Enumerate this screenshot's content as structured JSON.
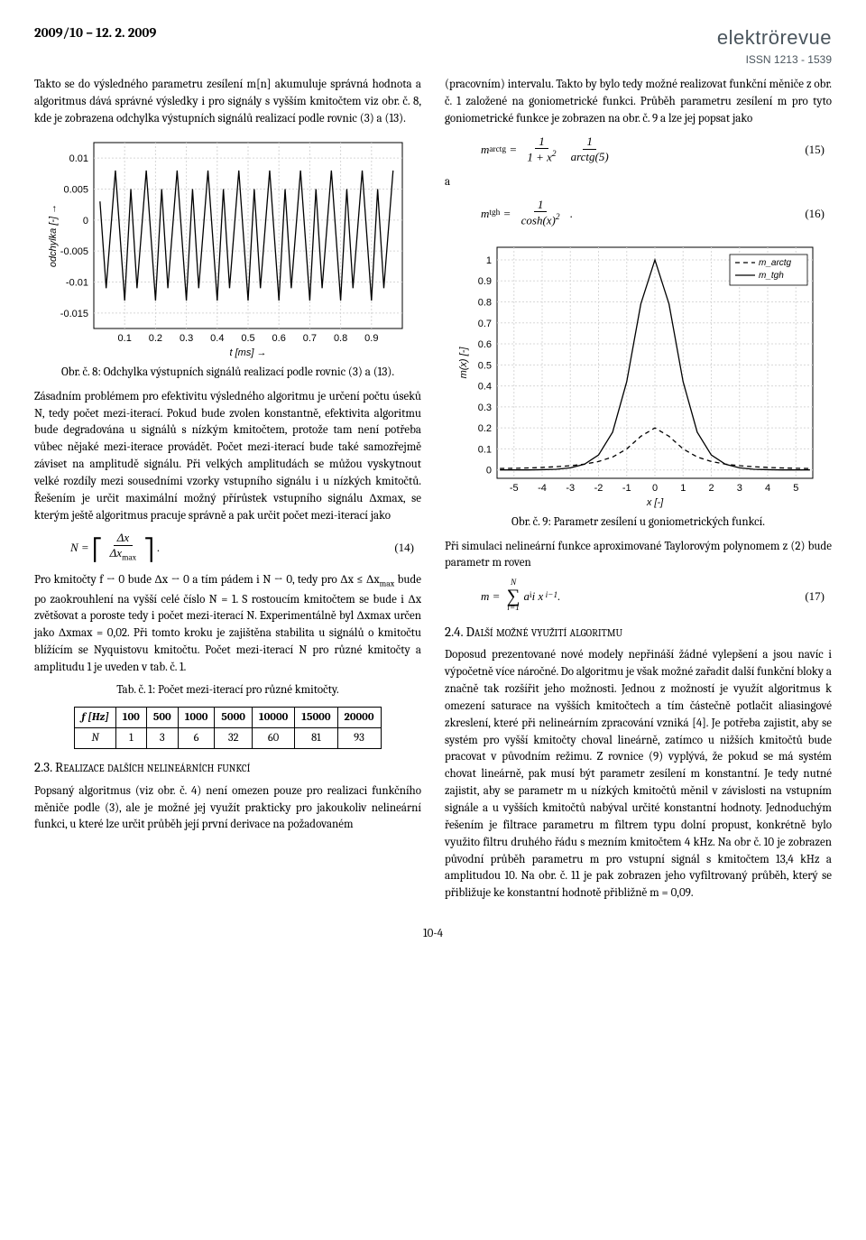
{
  "header": {
    "date": "2009/10 – 12. 2. 2009",
    "logo_main": "elektrörevue",
    "logo_issn": "ISSN 1213 - 1539"
  },
  "left": {
    "p1": "Takto se do výsledného parametru zesílení m[n] akumuluje správná hodnota a algoritmus dává správné výsledky i pro signály s vyšším kmitočtem viz obr. č. 8, kde je zobrazena odchylka výstupních signálů realizací podle rovnic (3) a (13).",
    "fig8_caption": "Obr. č. 8: Odchylka výstupních signálů realizací podle rovnic (3) a (13).",
    "p2": "Zásadním problémem pro efektivitu výsledného algoritmu je určení počtu úseků N, tedy počet mezi-iterací. Pokud bude zvolen konstantně, efektivita algoritmu bude degradována u signálů s nízkým kmitočtem, protože tam není potřeba vůbec nějaké mezi-iterace provádět. Počet mezi-iterací bude také samozřejmě záviset na amplitudě signálu. Při velkých amplitudách se můžou vyskytnout velké rozdíly mezi sousedními vzorky vstupního signálu i u nízkých kmitočtů. Řešením je určit maximální možný přírůstek vstupního signálu Δxmax, se kterým ještě algoritmus pracuje správně a pak určit počet mezi-iterací jako",
    "eq14_num": "(14)",
    "p3a": "Pro kmitočty  f → 0 bude  Δx → 0  a tím pádem i  N → 0, tedy pro  Δx ≤ Δx",
    "p3b": "  bude po zaokrouhlení na vyšší celé číslo N = 1. S rostoucím kmitočtem se bude i Δx zvětšovat a poroste tedy i počet mezi-iterací N. Experimentálně byl Δxmax určen jako Δxmax = 0,02. Při tomto kroku je zajištěna stabilita u signálů o kmitočtu blížícím se Nyquistovu kmitočtu. Počet mezi-iterací N pro různé kmitočty a amplitudu 1 je uveden v tab. č. 1.",
    "tab1_caption": "Tab. č. 1: Počet mezi-iterací pro různé kmitočty.",
    "sec23": "2.3. Realizace dalších nelineárních funkcí",
    "p4": "Popsaný algoritmus (viz obr. č. 4) není omezen pouze pro realizaci funkčního měniče podle (3), ale je možné jej využít prakticky pro jakoukoliv nelineární funkci, u které lze určit průběh její první derivace na požadovaném"
  },
  "right": {
    "p1": "(pracovním) intervalu.  Takto by bylo tedy možné realizovat funkční měniče z obr. č. 1 založené na goniometrické funkci. Průběh parametru zesílení m pro tyto goniometrické funkce je zobrazen na obr. č. 9 a lze jej popsat jako",
    "eq15_num": "(15)",
    "a_label": "a",
    "eq16_num": "(16)",
    "fig9_caption": "Obr. č. 9: Parametr zesílení u goniometrických funkcí.",
    "p2": "Při simulaci nelineární funkce aproximované Taylorovým polynomem z (2) bude parametr m roven",
    "eq17_num": "(17)",
    "sec24": "2.4. Další možné využití algoritmu",
    "p3": "Doposud prezentované nové modely nepřináší žádné vylepšení a jsou navíc i výpočetně více náročné. Do algoritmu je však možné zařadit další funkční bloky a značně tak rozšířit jeho možnosti. Jednou z možností je využít algoritmus k omezení saturace na vyšších kmitočtech a tím částečně potlačit aliasingové zkreslení, které při nelineárním zpracování vzniká [4]. Je potřeba zajistit, aby se systém pro vyšší kmitočty choval lineárně, zatímco u nižších kmitočtů bude pracovat v původním režimu. Z rovnice (9) vyplývá, že pokud se má systém chovat lineárně, pak musí být parametr zesílení m konstantní. Je tedy nutné zajistit, aby se parametr m u nízkých kmitočtů měnil v závislosti na vstupním signále a u vyšších kmitočtů nabýval určité konstantní hodnoty. Jednoduchým řešením je filtrace parametru m filtrem typu dolní propust, konkrétně bylo využito filtru druhého řádu s mezním kmitočtem 4 kHz. Na obr č. 10 je zobrazen původní průběh parametru m pro vstupní signál s kmitočtem 13,4 kHz a amplitudou 10. Na obr. č. 11 je pak zobrazen jeho vyfiltrovaný průběh, který se přibližuje ke konstantní hodnotě přibližně m = 0,09."
  },
  "table1": {
    "columns": [
      "f [Hz]",
      "100",
      "500",
      "1000",
      "5000",
      "10000",
      "15000",
      "20000"
    ],
    "rows": [
      [
        "N",
        "1",
        "3",
        "6",
        "32",
        "60",
        "81",
        "93"
      ]
    ]
  },
  "fig8": {
    "xlabel": "t [ms] →",
    "ylabel": "odchylka [-] →",
    "xticks": [
      0.1,
      0.2,
      0.3,
      0.4,
      0.5,
      0.6,
      0.7,
      0.8,
      0.9
    ],
    "yticks": [
      -0.015,
      -0.01,
      -0.005,
      0,
      0.005,
      0.01
    ],
    "xlim": [
      0.0,
      1.0
    ],
    "ylim": [
      -0.0175,
      0.0125
    ],
    "grid_color": "#d6d6d6",
    "line_color": "#000000",
    "bg": "#ffffff",
    "t": [
      0.02,
      0.04,
      0.07,
      0.1,
      0.12,
      0.14,
      0.17,
      0.2,
      0.22,
      0.24,
      0.27,
      0.3,
      0.32,
      0.34,
      0.37,
      0.4,
      0.42,
      0.44,
      0.47,
      0.5,
      0.52,
      0.54,
      0.57,
      0.6,
      0.62,
      0.64,
      0.67,
      0.7,
      0.72,
      0.74,
      0.77,
      0.8,
      0.82,
      0.84,
      0.87,
      0.9,
      0.92,
      0.94,
      0.97
    ],
    "y": [
      0.003,
      -0.011,
      0.008,
      -0.013,
      0.005,
      -0.011,
      0.008,
      -0.013,
      0.005,
      -0.011,
      0.008,
      -0.013,
      0.005,
      -0.011,
      0.008,
      -0.013,
      0.005,
      -0.011,
      0.008,
      -0.013,
      0.005,
      -0.011,
      0.008,
      -0.013,
      0.005,
      -0.011,
      0.008,
      -0.013,
      0.005,
      -0.011,
      0.008,
      -0.013,
      0.005,
      -0.011,
      0.008,
      -0.013,
      0.005,
      -0.011,
      0.008
    ]
  },
  "fig9": {
    "xlabel": "x [-]",
    "ylabel": "m(x) [-]",
    "xticks": [
      -5,
      -4,
      -3,
      -2,
      -1,
      0,
      1,
      2,
      3,
      4,
      5
    ],
    "yticks": [
      0,
      0.1,
      0.2,
      0.3,
      0.4,
      0.5,
      0.6,
      0.7,
      0.8,
      0.9,
      1
    ],
    "xlim": [
      -5.6,
      5.6
    ],
    "ylim": [
      -0.04,
      1.06
    ],
    "grid_color": "#d8d8d8",
    "bg": "#ffffff",
    "legend": [
      "m_arctg",
      "m_tgh"
    ],
    "series1": {
      "color": "#000000",
      "dash": "5,4",
      "x": [
        -5.5,
        -5,
        -4.5,
        -4,
        -3.5,
        -3,
        -2.5,
        -2,
        -1.5,
        -1,
        -0.5,
        0,
        0.5,
        1,
        1.5,
        2,
        2.5,
        3,
        3.5,
        4,
        4.5,
        5,
        5.5
      ],
      "y": [
        0.0066,
        0.0077,
        0.0093,
        0.0118,
        0.0153,
        0.02,
        0.0275,
        0.04,
        0.0615,
        0.1,
        0.16,
        0.2,
        0.16,
        0.1,
        0.0615,
        0.04,
        0.0275,
        0.02,
        0.0153,
        0.0118,
        0.0093,
        0.0077,
        0.0066
      ]
    },
    "series2": {
      "color": "#000000",
      "x": [
        -5.5,
        -5,
        -4.5,
        -4,
        -3.5,
        -3,
        -2.5,
        -2,
        -1.5,
        -1,
        -0.5,
        0,
        0.5,
        1,
        1.5,
        2,
        2.5,
        3,
        3.5,
        4,
        4.5,
        5,
        5.5
      ],
      "y": [
        0,
        0,
        0,
        0.001,
        0.003,
        0.01,
        0.027,
        0.071,
        0.18,
        0.42,
        0.79,
        1,
        0.79,
        0.42,
        0.18,
        0.071,
        0.027,
        0.01,
        0.003,
        0.001,
        0,
        0,
        0
      ]
    }
  },
  "footer": {
    "page": "10-4"
  }
}
